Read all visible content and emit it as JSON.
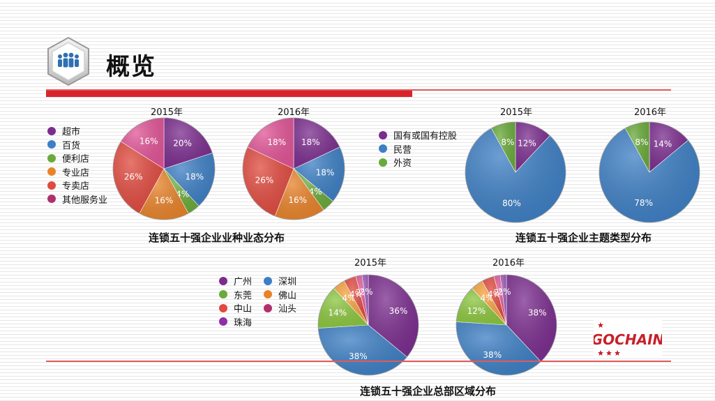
{
  "header": {
    "title": "概览"
  },
  "chart_data": [
    {
      "type": "pie",
      "title": "连锁五十强企业业种业态分布",
      "categories": [
        "超市",
        "百货",
        "便利店",
        "专业店",
        "专卖店",
        "其他服务业"
      ],
      "colors": [
        "#7b2d8e",
        "#3d7fc4",
        "#6aaa3a",
        "#e8832a",
        "#e04a3f",
        "#e15597"
      ],
      "series": [
        {
          "name": "2015年",
          "values": [
            20,
            18,
            4,
            16,
            26,
            16
          ]
        },
        {
          "name": "2016年",
          "values": [
            18,
            18,
            4,
            16,
            26,
            18
          ]
        }
      ],
      "legend": [
        {
          "label": "超市",
          "color": "#7b2d8e"
        },
        {
          "label": "百货",
          "color": "#3d7fc4"
        },
        {
          "label": "便利店",
          "color": "#6aaa3a"
        },
        {
          "label": "专业店",
          "color": "#e8832a"
        },
        {
          "label": "专卖店",
          "color": "#e04a3f"
        },
        {
          "label": "其他服务业",
          "color": "#b0306e"
        }
      ]
    },
    {
      "type": "pie",
      "title": "连锁五十强企业主题类型分布",
      "categories": [
        "国有或国有控股",
        "民营",
        "外资"
      ],
      "colors": [
        "#7b2d8e",
        "#3d7fc4",
        "#6aaa3a"
      ],
      "series": [
        {
          "name": "2015年",
          "values": [
            12,
            80,
            8
          ]
        },
        {
          "name": "2016年",
          "values": [
            14,
            78,
            8
          ]
        }
      ],
      "legend": [
        {
          "label": "国有或国有控股",
          "color": "#7b2d8e"
        },
        {
          "label": "民营",
          "color": "#3d7fc4"
        },
        {
          "label": "外资",
          "color": "#6aaa3a"
        }
      ]
    },
    {
      "type": "pie",
      "title": "连锁五十强企业总部区域分布",
      "categories": [
        "广州",
        "深圳",
        "东莞",
        "佛山",
        "中山",
        "汕头",
        "珠海"
      ],
      "colors": [
        "#7b2d8e",
        "#3d7fc4",
        "#8cc63f",
        "#f5a03c",
        "#e04a3f",
        "#e15597",
        "#9b59b6"
      ],
      "series": [
        {
          "name": "2015年",
          "values": [
            36,
            38,
            14,
            4,
            4,
            2,
            2
          ]
        },
        {
          "name": "2016年",
          "values": [
            38,
            38,
            12,
            4,
            4,
            2,
            2
          ]
        }
      ],
      "slice_labels": [
        "36%",
        "38%",
        "14%",
        "4%",
        "4%",
        "2%",
        "2%"
      ],
      "slice_labels_2016": [
        "38%",
        "38%",
        "12%",
        "4%",
        "4%",
        "2%",
        "2%"
      ],
      "legend": [
        {
          "label": "广州",
          "color": "#7b2d8e"
        },
        {
          "label": "深圳",
          "color": "#3d7fc4"
        },
        {
          "label": "东莞",
          "color": "#6aaa3a"
        },
        {
          "label": "佛山",
          "color": "#e8832a"
        },
        {
          "label": "中山",
          "color": "#e04a3f"
        },
        {
          "label": "汕头",
          "color": "#b0306e"
        },
        {
          "label": "珠海",
          "color": "#8e2fa8"
        }
      ]
    }
  ],
  "logo": {
    "text": "GOCHAIN"
  }
}
